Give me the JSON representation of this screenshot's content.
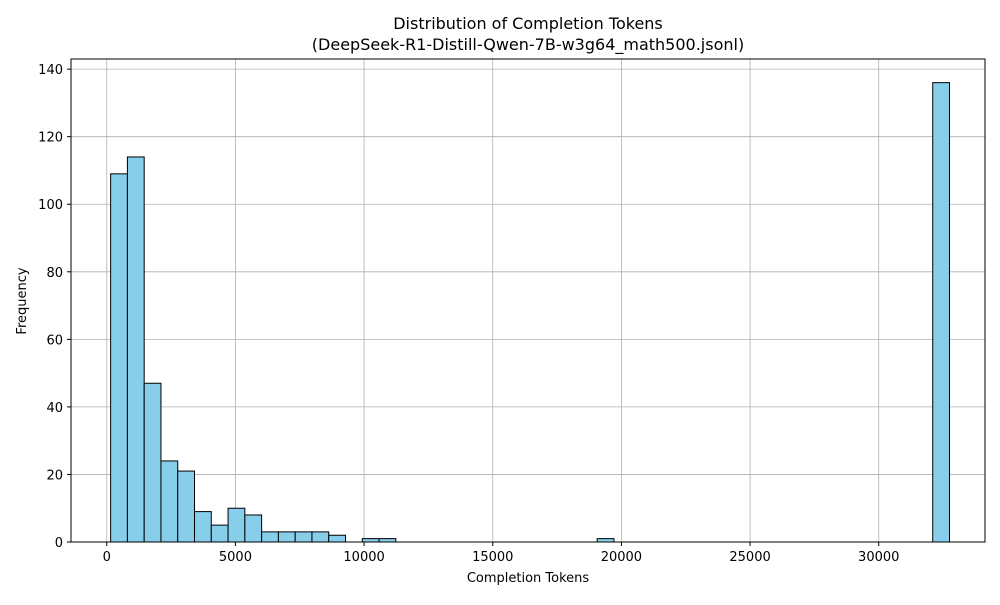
{
  "chart_data": {
    "type": "bar",
    "title_line1": "Distribution of Completion Tokens",
    "title_line2": "(DeepSeek-R1-Distill-Qwen-7B-w3g64_math500.jsonl)",
    "xlabel": "Completion Tokens",
    "ylabel": "Frequency",
    "xlim": [
      -1390,
      34130
    ],
    "ylim": [
      0,
      143
    ],
    "grid": true,
    "bar_color": "#87CEEB",
    "edge_color": "#000000",
    "xticks": [
      0,
      5000,
      10000,
      15000,
      20000,
      25000,
      30000
    ],
    "yticks": [
      0,
      20,
      40,
      60,
      80,
      100,
      120,
      140
    ],
    "bin_width": 652,
    "bins_start": 150,
    "values": [
      109,
      114,
      47,
      24,
      21,
      9,
      5,
      10,
      8,
      3,
      3,
      3,
      3,
      2,
      0,
      1,
      1,
      0,
      0,
      0,
      0,
      0,
      0,
      0,
      0,
      0,
      0,
      0,
      0,
      1,
      0,
      0,
      0,
      0,
      0,
      0,
      0,
      0,
      0,
      0,
      0,
      0,
      0,
      0,
      0,
      0,
      0,
      0,
      0,
      136
    ]
  }
}
